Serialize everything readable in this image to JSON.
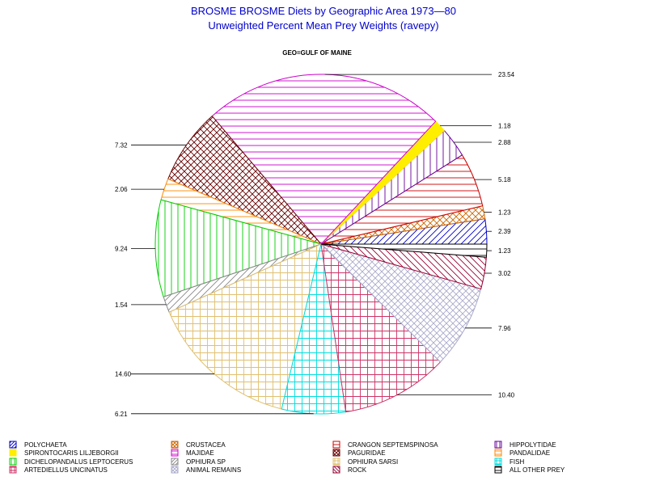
{
  "chart_data": {
    "type": "pie",
    "title": "BROSME BROSME Diets by Geographic Area 1973—80",
    "subtitle": "Unweighted Percent Mean Prey Weights (ravepy)",
    "panel_label": "GEO=GULF OF MAINE",
    "slices": [
      {
        "legend": "POLYCHAETA",
        "value": 2.39,
        "label": "2.39",
        "color": "#0000cc",
        "pattern": "diag-up"
      },
      {
        "legend": "CRUSTACEA",
        "value": 1.23,
        "label": "1.23",
        "color": "#cc6600",
        "pattern": "cross-diag"
      },
      {
        "legend": "CRANGON SEPTEMSPINOSA",
        "value": 5.18,
        "label": "5.18",
        "color": "#cc0000",
        "pattern": "horiz"
      },
      {
        "legend": "HIPPOLYTIDAE",
        "value": 2.88,
        "label": "2.88",
        "color": "#660099",
        "pattern": "vert"
      },
      {
        "legend": "SPIRONTOCARIS LILJEBORGII",
        "value": 1.18,
        "label": "1.18",
        "color": "#ffee00",
        "pattern": "solid"
      },
      {
        "legend": "MAJIDAE",
        "value": 23.54,
        "label": "23.54",
        "color": "#cc00cc",
        "pattern": "horiz"
      },
      {
        "legend": "PAGURIDAE",
        "value": 7.32,
        "label": "7.32",
        "color": "#660000",
        "pattern": "cross-diag"
      },
      {
        "legend": "PANDALIDAE",
        "value": 2.06,
        "label": "2.06",
        "color": "#ff8800",
        "pattern": "horiz"
      },
      {
        "legend": "DICHELOPANDALUS LEPTOCERUS",
        "value": 9.24,
        "label": "9.24",
        "color": "#00cc00",
        "pattern": "vert"
      },
      {
        "legend": "OPHIURA SP",
        "value": 1.54,
        "label": "1.54",
        "color": "#888888",
        "pattern": "diag-up"
      },
      {
        "legend": "OPHIURA SARSI",
        "value": 14.6,
        "label": "14.60",
        "color": "#e0c070",
        "pattern": "grid"
      },
      {
        "legend": "FISH",
        "value": 6.21,
        "label": "6.21",
        "color": "#00dddd",
        "pattern": "grid"
      },
      {
        "legend": "ARTEDIELLUS UNCINATUS",
        "value": 10.4,
        "label": "10.40",
        "color": "#cc3366",
        "pattern": "grid"
      },
      {
        "legend": "ANIMAL REMAINS",
        "value": 7.96,
        "label": "7.96",
        "color": "#aaaacc",
        "pattern": "cross-diag"
      },
      {
        "legend": "ROCK",
        "value": 3.02,
        "label": "3.02",
        "color": "#990033",
        "pattern": "diag-down"
      },
      {
        "legend": "ALL OTHER PREY",
        "value": 1.23,
        "label": "1.23",
        "color": "#000000",
        "pattern": "horiz"
      }
    ],
    "legend_order": [
      "POLYCHAETA",
      "CRUSTACEA",
      "CRANGON SEPTEMSPINOSA",
      "HIPPOLYTIDAE",
      "SPIRONTOCARIS LILJEBORGII",
      "MAJIDAE",
      "PAGURIDAE",
      "PANDALIDAE",
      "DICHELOPANDALUS LEPTOCERUS",
      "OPHIURA SP",
      "OPHIURA SARSI",
      "FISH",
      "ARTEDIELLUS UNCINATUS",
      "ANIMAL REMAINS",
      "ROCK",
      "ALL OTHER PREY"
    ],
    "start_angle_deg": 0,
    "direction": "counterclockwise",
    "legend_placement": "bottom"
  }
}
